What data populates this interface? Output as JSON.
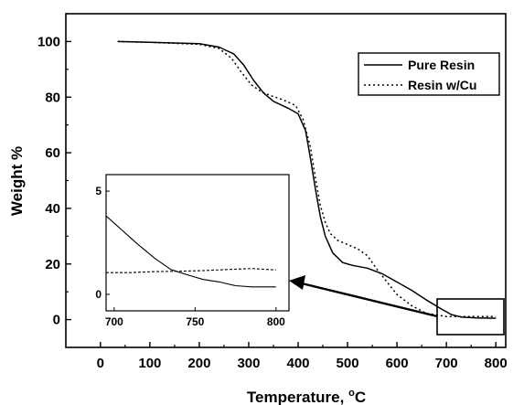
{
  "chart_data": [
    {
      "type": "line",
      "xlabel": "Temperature, ",
      "xlabel_unit_sup": "o",
      "xlabel_unit": "C",
      "ylabel": "Weight %",
      "xlim": [
        -70,
        820
      ],
      "ylim": [
        -10,
        110
      ],
      "xticks": [
        "0",
        "100",
        "200",
        "300",
        "400",
        "500",
        "600",
        "700",
        "800"
      ],
      "yticks": [
        "0",
        "20",
        "40",
        "60",
        "80",
        "100"
      ],
      "legend_position": "top-right",
      "series": [
        {
          "name": "Pure Resin",
          "style": "solid",
          "color": "#000000",
          "x": [
            35,
            100,
            200,
            240,
            270,
            290,
            310,
            330,
            350,
            380,
            400,
            415,
            425,
            435,
            445,
            455,
            470,
            490,
            510,
            540,
            570,
            600,
            630,
            660,
            690,
            710,
            730,
            760,
            800
          ],
          "y": [
            100,
            99.7,
            99.2,
            98,
            95.5,
            91.5,
            86,
            81.5,
            78.5,
            76,
            74,
            68,
            58,
            47,
            37,
            30,
            24,
            20.5,
            19.5,
            18.5,
            16.5,
            13.5,
            10.5,
            7,
            3.8,
            1.8,
            0.9,
            0.6,
            0.5
          ]
        },
        {
          "name": "Resin w/Cu",
          "style": "dotted",
          "color": "#000000",
          "x": [
            35,
            100,
            200,
            240,
            265,
            285,
            305,
            325,
            345,
            370,
            395,
            410,
            425,
            435,
            445,
            455,
            465,
            480,
            500,
            520,
            540,
            560,
            580,
            600,
            630,
            660,
            700,
            750,
            800
          ],
          "y": [
            100,
            99.7,
            99,
            97.5,
            94,
            89,
            84.5,
            82,
            80.5,
            79,
            77,
            72,
            62,
            51,
            41,
            35,
            31,
            28.5,
            27,
            25.5,
            23,
            18,
            13.5,
            9,
            5,
            2.2,
            1.1,
            1.1,
            1.1
          ]
        }
      ],
      "annotation": "inset-zoom-box"
    },
    {
      "type": "line",
      "role": "inset",
      "xlim": [
        695,
        808
      ],
      "ylim": [
        -0.8,
        5.8
      ],
      "xticks": [
        "700",
        "750",
        "800"
      ],
      "yticks": [
        "0",
        "5"
      ],
      "series": [
        {
          "name": "Pure Resin",
          "style": "solid",
          "x": [
            695,
            705,
            715,
            725,
            735,
            745,
            755,
            765,
            775,
            785,
            800
          ],
          "y": [
            3.8,
            3.1,
            2.4,
            1.75,
            1.2,
            0.95,
            0.72,
            0.6,
            0.42,
            0.36,
            0.36
          ]
        },
        {
          "name": "Resin w/Cu",
          "style": "dashed",
          "x": [
            695,
            710,
            725,
            740,
            755,
            770,
            785,
            800
          ],
          "y": [
            1.05,
            1.05,
            1.1,
            1.12,
            1.15,
            1.2,
            1.25,
            1.18
          ]
        }
      ]
    }
  ]
}
